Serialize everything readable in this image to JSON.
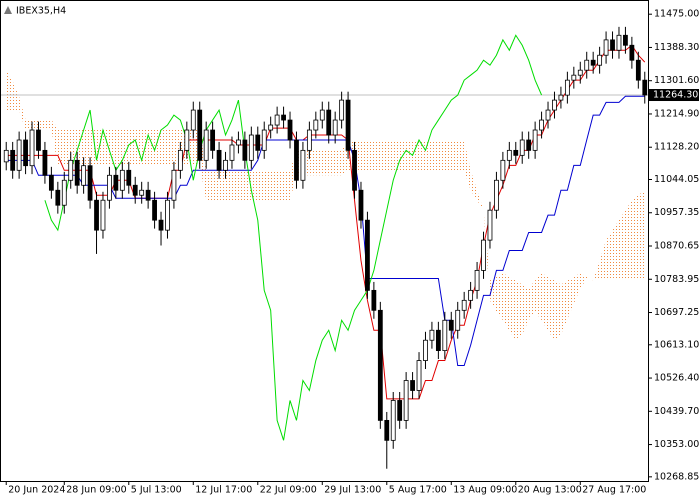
{
  "chart_data": {
    "type": "candlestick",
    "title": "IBEX35,H4",
    "categories": [
      "20 Jun 2024",
      null,
      null,
      null,
      null,
      null,
      null,
      null,
      null,
      "28 Jun 09:00",
      null,
      null,
      null,
      null,
      null,
      null,
      null,
      null,
      null,
      "5 Jul 13:00",
      null,
      null,
      null,
      null,
      null,
      null,
      null,
      null,
      null,
      "12 Jul 17:00",
      null,
      null,
      null,
      null,
      null,
      null,
      null,
      null,
      null,
      "22 Jul 09:00",
      null,
      null,
      null,
      null,
      null,
      null,
      null,
      null,
      null,
      "29 Jul 13:00",
      null,
      null,
      null,
      null,
      null,
      null,
      null,
      null,
      null,
      "5 Aug 17:00",
      null,
      null,
      null,
      null,
      null,
      null,
      null,
      null,
      null,
      "13 Aug 09:00",
      null,
      null,
      null,
      null,
      null,
      null,
      null,
      null,
      null,
      "20 Aug 13:00",
      null,
      null,
      null,
      null,
      null,
      null,
      null,
      null,
      null,
      "27 Aug 17:00",
      null,
      null,
      null,
      null,
      null,
      null,
      null,
      null,
      null,
      null
    ],
    "open": [
      11090,
      11120,
      11068,
      11147,
      11080,
      11173,
      11120,
      11055,
      11016,
      10977,
      11042,
      11094,
      11029,
      11080,
      10990,
      10912,
      10990,
      11055,
      11016,
      11068,
      11029,
      11003,
      11016,
      10990,
      10938,
      10912,
      10990,
      11068,
      11120,
      11173,
      11225,
      11094,
      11173,
      11120,
      11068,
      11094,
      11134,
      11147,
      11094,
      11160,
      11120,
      11173,
      11186,
      11212,
      11199,
      11147,
      11042,
      11120,
      11173,
      11199,
      11225,
      11160,
      11199,
      11251,
      11120,
      11016,
      10938,
      10755,
      10703,
      10416,
      10364,
      10468,
      10416,
      10520,
      10494,
      10572,
      10625,
      10651,
      10598,
      10677,
      10651,
      10703,
      10729,
      10755,
      10807,
      10886,
      10964,
      11042,
      11094,
      11120,
      11107,
      11147,
      11120,
      11173,
      11199,
      11225,
      11251,
      11264,
      11303,
      11316,
      11329,
      11355,
      11342,
      11368,
      11408,
      11381,
      11420,
      11394,
      11355,
      11303
    ],
    "high": [
      11142,
      11142,
      11169,
      11169,
      11195,
      11195,
      11142,
      11077,
      11038,
      11064,
      11116,
      11116,
      11102,
      11102,
      11012,
      11012,
      11077,
      11077,
      11090,
      11090,
      11051,
      11038,
      11038,
      11012,
      10960,
      11012,
      11090,
      11142,
      11195,
      11247,
      11247,
      11195,
      11195,
      11142,
      11116,
      11156,
      11169,
      11169,
      11182,
      11182,
      11195,
      11208,
      11234,
      11234,
      11221,
      11169,
      11142,
      11195,
      11221,
      11247,
      11247,
      11221,
      11273,
      11273,
      11142,
      11038,
      10960,
      10777,
      10725,
      10438,
      10490,
      10490,
      10542,
      10542,
      10594,
      10647,
      10673,
      10673,
      10699,
      10699,
      10725,
      10751,
      10777,
      10829,
      10908,
      10986,
      11064,
      11116,
      11142,
      11142,
      11169,
      11169,
      11195,
      11221,
      11247,
      11273,
      11286,
      11325,
      11338,
      11351,
      11377,
      11377,
      11390,
      11430,
      11430,
      11442,
      11442,
      11416,
      11377,
      11325
    ],
    "low": [
      11068,
      11046,
      11046,
      11058,
      11058,
      11098,
      11033,
      10994,
      10955,
      10955,
      11020,
      11007,
      11007,
      10968,
      10850,
      10890,
      10968,
      10994,
      10994,
      11007,
      10981,
      10981,
      10968,
      10916,
      10872,
      10890,
      10968,
      11046,
      11098,
      11151,
      11072,
      11072,
      11098,
      11046,
      11046,
      11072,
      11112,
      11072,
      11072,
      11098,
      11098,
      11151,
      11164,
      11177,
      11125,
      11020,
      11020,
      11098,
      11151,
      11177,
      11138,
      11138,
      11177,
      11098,
      10994,
      10916,
      10733,
      10681,
      10394,
      10290,
      10342,
      10394,
      10394,
      10472,
      10472,
      10550,
      10603,
      10576,
      10576,
      10629,
      10629,
      10681,
      10707,
      10733,
      10785,
      10864,
      10942,
      11020,
      11072,
      11085,
      11085,
      11098,
      11098,
      11151,
      11177,
      11203,
      11229,
      11242,
      11281,
      11294,
      11307,
      11320,
      11320,
      11346,
      11359,
      11359,
      11372,
      11333,
      11281,
      11242
    ],
    "close": [
      11120,
      11068,
      11147,
      11080,
      11173,
      11120,
      11055,
      11016,
      10977,
      11042,
      11094,
      11029,
      11080,
      10990,
      10912,
      10990,
      11055,
      11016,
      11068,
      11029,
      11003,
      11016,
      10990,
      10938,
      10912,
      10990,
      11068,
      11120,
      11173,
      11225,
      11094,
      11173,
      11120,
      11068,
      11094,
      11134,
      11147,
      11094,
      11160,
      11120,
      11173,
      11186,
      11212,
      11199,
      11147,
      11042,
      11120,
      11173,
      11199,
      11225,
      11160,
      11199,
      11251,
      11120,
      11016,
      10938,
      10755,
      10703,
      10416,
      10364,
      10468,
      10416,
      10520,
      10494,
      10572,
      10625,
      10651,
      10598,
      10677,
      10651,
      10703,
      10729,
      10755,
      10807,
      10886,
      10964,
      11042,
      11094,
      11120,
      11107,
      11147,
      11120,
      11173,
      11199,
      11225,
      11251,
      11264,
      11303,
      11316,
      11329,
      11355,
      11342,
      11368,
      11408,
      11381,
      11420,
      11394,
      11355,
      11303,
      11264.3
    ],
    "up_color": "#ffffff",
    "down_color": "#000000",
    "series": [
      {
        "color": "#e00000",
        "values": [
          11107,
          11107,
          11107,
          11107,
          11107,
          11107,
          11107,
          11107,
          11107,
          11068,
          11068,
          11068,
          11068,
          11068,
          11003,
          11003,
          11003,
          11042,
          11042,
          11042,
          10995,
          10995,
          10995,
          10995,
          10995,
          10995,
          11068,
          11068,
          11147,
          11147,
          11147,
          11147,
          11147,
          11147,
          11147,
          11147,
          11134,
          11134,
          11134,
          11134,
          11134,
          11178,
          11178,
          11178,
          11178,
          11147,
          11147,
          11160,
          11160,
          11160,
          11160,
          11160,
          11160,
          11147,
          10990,
          10833,
          10729,
          10651,
          10651,
          10472,
          10472,
          10472,
          10472,
          10472,
          10472,
          10520,
          10520,
          10572,
          10572,
          10625,
          10664,
          10664,
          10729,
          10781,
          10872,
          10951,
          10990,
          11029,
          11081,
          11081,
          11120,
          11120,
          11160,
          11160,
          11199,
          11225,
          11251,
          11277,
          11303,
          11303,
          11329,
          11329,
          11355,
          11381,
          11381,
          11381,
          11381,
          11394,
          11368,
          11350
        ]
      },
      {
        "color": "#0000d0",
        "values": [
          11094,
          11094,
          11094,
          11094,
          11094,
          11055,
          11055,
          11055,
          11055,
          11055,
          11055,
          11055,
          11029,
          11029,
          11029,
          11029,
          11029,
          10995,
          10995,
          10995,
          10995,
          10995,
          10995,
          10995,
          10995,
          10995,
          10995,
          11029,
          11029,
          11068,
          11068,
          11068,
          11068,
          11068,
          11068,
          11068,
          11068,
          11068,
          11068,
          11094,
          11147,
          11147,
          11147,
          11147,
          11147,
          11147,
          11147,
          11147,
          11147,
          11147,
          11147,
          11147,
          11147,
          11147,
          11094,
          10990,
          10786,
          10786,
          10786,
          10786,
          10786,
          10786,
          10786,
          10786,
          10786,
          10786,
          10786,
          10786,
          10677,
          10677,
          10559,
          10559,
          10612,
          10677,
          10742,
          10742,
          10807,
          10807,
          10859,
          10859,
          10859,
          10906,
          10906,
          10906,
          10951,
          10951,
          11016,
          11016,
          11081,
          11081,
          11147,
          11212,
          11212,
          11245,
          11245,
          11245,
          11261,
          11261,
          11261,
          11261
        ]
      },
      {
        "color": "#00dd00",
        "values": [
          null,
          null,
          null,
          null,
          null,
          null,
          10990,
          10938,
          10912,
          10990,
          11068,
          11120,
          11173,
          11225,
          11094,
          11173,
          11120,
          11068,
          11094,
          11134,
          11147,
          11094,
          11160,
          11120,
          11173,
          11186,
          11212,
          11199,
          11147,
          11042,
          11120,
          11173,
          11199,
          11225,
          11160,
          11199,
          11251,
          11120,
          11016,
          10938,
          10755,
          10703,
          10416,
          10364,
          10468,
          10416,
          10520,
          10494,
          10572,
          10625,
          10651,
          10598,
          10677,
          10651,
          10703,
          10729,
          10755,
          10807,
          10886,
          10964,
          11042,
          11094,
          11120,
          11107,
          11147,
          11120,
          11173,
          11199,
          11225,
          11251,
          11264,
          11303,
          11316,
          11329,
          11355,
          11342,
          11368,
          11408,
          11381,
          11420,
          11394,
          11355,
          11303,
          11264.3,
          null,
          null,
          null,
          null,
          null,
          null,
          null,
          null,
          null,
          null,
          null,
          null,
          null,
          null,
          null,
          null
        ]
      }
    ],
    "cloud": {
      "color": "#f08a40",
      "span_a": [
        11329,
        11300,
        11260,
        11199,
        11199,
        11199,
        11199,
        11199,
        11178,
        11178,
        11178,
        11178,
        11178,
        11178,
        11178,
        11178,
        11178,
        11178,
        11178,
        11178,
        11178,
        11178,
        11178,
        11178,
        11178,
        11178,
        11178,
        11178,
        11178,
        11178,
        11178,
        11068,
        11068,
        11068,
        11068,
        11068,
        11068,
        11068,
        11068,
        11068,
        11068,
        11068,
        11068,
        11068,
        11068,
        11120,
        11120,
        11120,
        11120,
        11120,
        11120,
        11120,
        11120,
        11147,
        11147,
        11147,
        11147,
        11147,
        11147,
        11147,
        11147,
        11147,
        11147,
        11147,
        11147,
        11147,
        11147,
        11147,
        11147,
        11147,
        11147,
        11147,
        11068,
        11016,
        10964,
        10781,
        10790,
        10800,
        10790,
        10781,
        10770,
        10760,
        10781,
        10800,
        10790,
        10781,
        10770,
        10781,
        10790,
        10800,
        10790,
        10781,
        10833,
        10886,
        10912,
        10938,
        10964,
        10990,
        11003,
        11016
      ],
      "span_b": [
        11225,
        11225,
        11225,
        11173,
        11173,
        11173,
        11173,
        11173,
        11081,
        11081,
        11081,
        11081,
        11081,
        11081,
        11081,
        11081,
        11081,
        11081,
        11081,
        11081,
        11081,
        11081,
        11081,
        11081,
        11081,
        11081,
        11081,
        11081,
        11081,
        11081,
        11081,
        10990,
        10990,
        10990,
        10990,
        10990,
        10990,
        10990,
        10990,
        10990,
        10990,
        10990,
        10990,
        10990,
        10990,
        11055,
        11055,
        11055,
        11055,
        11055,
        11055,
        11055,
        11055,
        11068,
        11068,
        11068,
        11068,
        11068,
        11068,
        11068,
        11068,
        11068,
        11068,
        11068,
        11068,
        11068,
        11068,
        11068,
        11068,
        11068,
        11068,
        11068,
        11016,
        10990,
        10964,
        10729,
        10700,
        10677,
        10650,
        10625,
        10640,
        10677,
        10700,
        10677,
        10650,
        10625,
        10640,
        10680,
        10720,
        10760,
        10786,
        10786,
        10786,
        10786,
        10786,
        10786,
        10786,
        10786,
        10786,
        10786
      ]
    },
    "price_label": {
      "value": 11264.3,
      "label": "11264.30"
    },
    "ylim": [
      10258,
      11512
    ],
    "yticks": [
      {
        "value": 11475,
        "label": "11475.00"
      },
      {
        "value": 11388.3,
        "label": "11388.30"
      },
      {
        "value": 11301.6,
        "label": "11301.60"
      },
      {
        "value": 11214.9,
        "label": "11214.90"
      },
      {
        "value": 11128.2,
        "label": "11128.20"
      },
      {
        "value": 11044.05,
        "label": "11044.05"
      },
      {
        "value": 10957.35,
        "label": "10957.35"
      },
      {
        "value": 10870.65,
        "label": "10870.65"
      },
      {
        "value": 10783.95,
        "label": "10783.95"
      },
      {
        "value": 10697.25,
        "label": "10697.25"
      },
      {
        "value": 10613.1,
        "label": "10613.10"
      },
      {
        "value": 10526.4,
        "label": "10526.40"
      },
      {
        "value": 10439.7,
        "label": "10439.70"
      },
      {
        "value": 10353,
        "label": "10353.00"
      },
      {
        "value": 10268.85,
        "label": "10268.85"
      }
    ]
  }
}
